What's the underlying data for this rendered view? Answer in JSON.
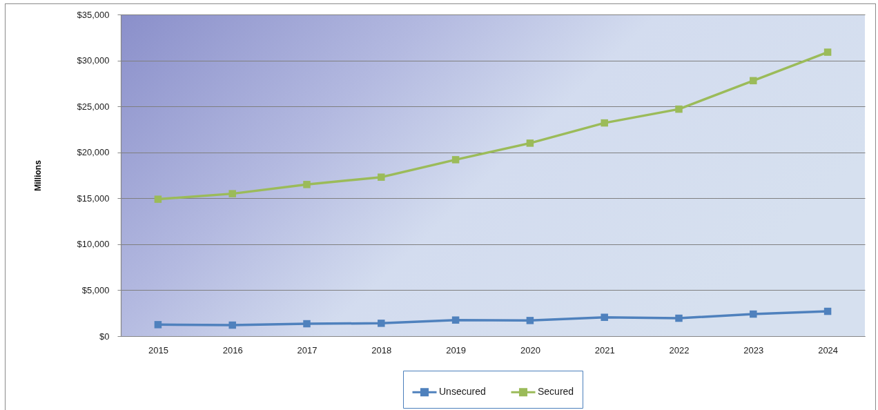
{
  "chart_data": {
    "type": "line",
    "categories": [
      "2015",
      "2016",
      "2017",
      "2018",
      "2019",
      "2020",
      "2021",
      "2022",
      "2023",
      "2024"
    ],
    "ylabel": "Millions",
    "ylim": [
      0,
      35000
    ],
    "yticks": [
      {
        "value": 0,
        "label": "$0"
      },
      {
        "value": 5000,
        "label": "$5,000"
      },
      {
        "value": 10000,
        "label": "$10,000"
      },
      {
        "value": 15000,
        "label": "$15,000"
      },
      {
        "value": 20000,
        "label": "$20,000"
      },
      {
        "value": 25000,
        "label": "$25,000"
      },
      {
        "value": 30000,
        "label": "$30,000"
      },
      {
        "value": 35000,
        "label": "$35,000"
      }
    ],
    "grid": "y",
    "legend": "bottom",
    "marker": "square",
    "line_style": "solid",
    "series": [
      {
        "name": "Unsecured",
        "color": "#4f81bd",
        "values": [
          1250,
          1200,
          1350,
          1400,
          1750,
          1700,
          2050,
          1950,
          2400,
          2700
        ]
      },
      {
        "name": "Secured",
        "color": "#9bbb59",
        "values": [
          14900,
          15500,
          16500,
          17300,
          19200,
          21000,
          23200,
          24700,
          27800,
          30900
        ]
      }
    ]
  }
}
